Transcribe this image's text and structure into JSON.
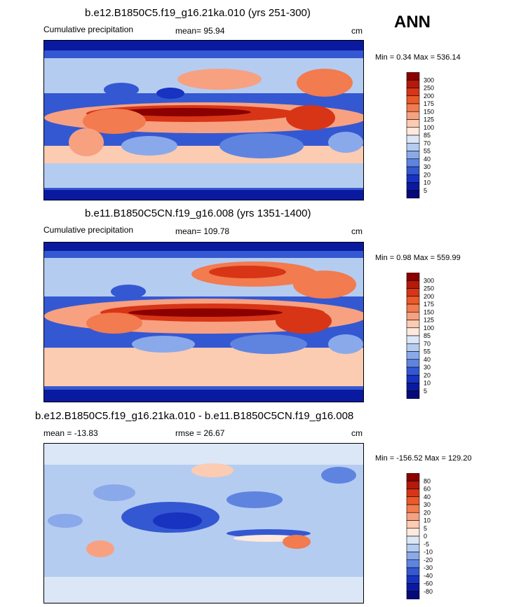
{
  "season": "ANN",
  "panels": [
    {
      "title": "b.e12.B1850C5.f19_g16.21ka.010 (yrs 251-300)",
      "left_label": "Cumulative precipitation",
      "center_label": "mean=  95.94",
      "units": "cm",
      "minmax": "Min =   0.34 Max = 536.14",
      "levels": [
        "300",
        "250",
        "200",
        "175",
        "150",
        "125",
        "100",
        "85",
        "70",
        "55",
        "40",
        "30",
        "20",
        "10",
        "5"
      ],
      "colors": [
        "#8b0000",
        "#b41a0a",
        "#d73516",
        "#ea5a2a",
        "#f27b4f",
        "#f7a181",
        "#fbcbb2",
        "#fde9dd",
        "#dbe6f7",
        "#b5ccf1",
        "#8aa9ea",
        "#5f84e0",
        "#3458d2",
        "#1733c0",
        "#0a1aa0",
        "#050a78"
      ]
    },
    {
      "title": "b.e11.B1850C5CN.f19_g16.008 (yrs 1351-1400)",
      "left_label": "Cumulative precipitation",
      "center_label": "mean= 109.78",
      "units": "cm",
      "minmax": "Min =   0.98 Max = 559.99",
      "levels": [
        "300",
        "250",
        "200",
        "175",
        "150",
        "125",
        "100",
        "85",
        "70",
        "55",
        "40",
        "30",
        "20",
        "10",
        "5"
      ],
      "colors": [
        "#8b0000",
        "#b41a0a",
        "#d73516",
        "#ea5a2a",
        "#f27b4f",
        "#f7a181",
        "#fbcbb2",
        "#fde9dd",
        "#dbe6f7",
        "#b5ccf1",
        "#8aa9ea",
        "#5f84e0",
        "#3458d2",
        "#1733c0",
        "#0a1aa0",
        "#050a78"
      ]
    },
    {
      "title": "b.e12.B1850C5.f19_g16.21ka.010 - b.e11.B1850C5CN.f19_g16.008",
      "left_label": "mean = -13.83",
      "center_label": "rmse =  26.67",
      "units": "cm",
      "minmax": "Min = -156.52 Max = 129.20",
      "levels": [
        "80",
        "60",
        "40",
        "30",
        "20",
        "10",
        "5",
        "0",
        "-5",
        "-10",
        "-20",
        "-30",
        "-40",
        "-60",
        "-80"
      ],
      "colors": [
        "#8b0000",
        "#b41a0a",
        "#d73516",
        "#ea5a2a",
        "#f27b4f",
        "#f7a181",
        "#fbcbb2",
        "#fde9dd",
        "#dbe6f7",
        "#b5ccf1",
        "#8aa9ea",
        "#5f84e0",
        "#3458d2",
        "#1733c0",
        "#0a1aa0",
        "#050a78"
      ]
    }
  ]
}
